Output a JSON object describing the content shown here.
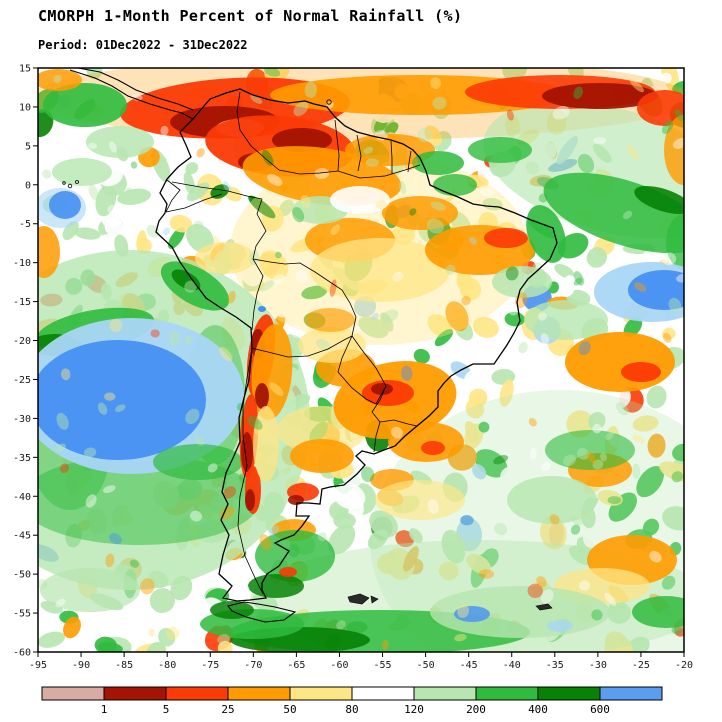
{
  "page": {
    "title": "CMORPH 1-Month Percent of Normal Rainfall (%)",
    "subtitle": "Period: 01Dec2022 - 31Dec2022"
  },
  "chart_data": {
    "type": "heatmap",
    "title": "CMORPH 1-Month Percent of Normal Rainfall (%)",
    "period": "01Dec2022 - 31Dec2022",
    "region_shown": "South America",
    "lon_range": [
      -95,
      -20
    ],
    "lat_range": [
      -60,
      15
    ],
    "lon_ticks": [
      -95,
      -90,
      -85,
      -80,
      -75,
      -70,
      -65,
      -60,
      -55,
      -50,
      -45,
      -40,
      -35,
      -30,
      -25,
      -20
    ],
    "lat_ticks": [
      15,
      10,
      5,
      0,
      -5,
      -10,
      -15,
      -20,
      -25,
      -30,
      -35,
      -40,
      -45,
      -50,
      -55,
      -60
    ],
    "legend": {
      "boundaries": [
        1,
        5,
        25,
        50,
        80,
        120,
        200,
        400,
        600
      ],
      "colors": [
        "#d9aca3",
        "#a31402",
        "#fb3a05",
        "#ff9b00",
        "#ffe685",
        "#ffffff",
        "#b7e6b0",
        "#2fbb3e",
        "#078207",
        "#5b9ef0"
      ]
    },
    "palette": {
      "tan": "#d9aca3",
      "darkred": "#a31402",
      "red": "#fb3a05",
      "orange": "#ff9b00",
      "yellow": "#ffe685",
      "white": "#ffffff",
      "lightgreen": "#b7e6b0",
      "green": "#2fbb3e",
      "darkgreen": "#078207",
      "lightblue": "#a9d6f5",
      "blue": "#4690f2"
    },
    "map_regions_format": "cx,cy,rx,ry,rotation_deg,palette_color,opacity",
    "map_regions": [
      [
        360,
        98,
        330,
        42,
        0,
        "orange",
        0.28
      ],
      [
        610,
        170,
        130,
        62,
        15,
        "lightgreen",
        0.65
      ],
      [
        380,
        250,
        150,
        95,
        0,
        "yellow",
        0.4
      ],
      [
        130,
        420,
        180,
        170,
        0,
        "lightgreen",
        0.8
      ],
      [
        560,
        540,
        190,
        150,
        0,
        "lightgreen",
        0.3
      ],
      [
        480,
        600,
        230,
        60,
        0,
        "lightgreen",
        0.45
      ],
      [
        90,
        590,
        50,
        22,
        0,
        "lightgreen",
        0.7
      ],
      [
        140,
        500,
        120,
        45,
        0,
        "green",
        0.5
      ],
      [
        70,
        450,
        40,
        60,
        0,
        "green",
        0.45
      ],
      [
        215,
        395,
        30,
        70,
        0,
        "green",
        0.45
      ],
      [
        235,
        108,
        115,
        30,
        -3,
        "red",
        0.95
      ],
      [
        225,
        122,
        55,
        16,
        0,
        "darkred",
        0.95
      ],
      [
        240,
        128,
        24,
        9,
        0,
        "tan",
        0.9
      ],
      [
        420,
        95,
        150,
        20,
        0,
        "orange",
        0.9
      ],
      [
        560,
        92,
        95,
        17,
        0,
        "red",
        0.9
      ],
      [
        600,
        96,
        58,
        13,
        0,
        "darkred",
        0.95
      ],
      [
        665,
        108,
        28,
        18,
        0,
        "red",
        0.9
      ],
      [
        684,
        150,
        20,
        35,
        0,
        "orange",
        0.8
      ],
      [
        85,
        105,
        42,
        22,
        0,
        "green",
        0.9
      ],
      [
        120,
        142,
        34,
        16,
        0,
        "lightgreen",
        0.85
      ],
      [
        58,
        80,
        24,
        11,
        0,
        "orange",
        0.85
      ],
      [
        280,
        146,
        75,
        30,
        5,
        "red",
        0.95
      ],
      [
        302,
        140,
        30,
        12,
        0,
        "darkred",
        0.95
      ],
      [
        256,
        162,
        18,
        9,
        0,
        "darkred",
        0.95
      ],
      [
        322,
        176,
        80,
        28,
        8,
        "orange",
        0.9
      ],
      [
        390,
        150,
        45,
        16,
        0,
        "orange",
        0.85
      ],
      [
        438,
        163,
        26,
        12,
        0,
        "green",
        0.85
      ],
      [
        500,
        150,
        32,
        13,
        0,
        "green",
        0.8
      ],
      [
        350,
        240,
        45,
        22,
        0,
        "orange",
        0.85
      ],
      [
        420,
        213,
        38,
        17,
        0,
        "orange",
        0.85
      ],
      [
        380,
        270,
        70,
        32,
        0,
        "yellow",
        0.75
      ],
      [
        320,
        210,
        28,
        14,
        0,
        "lightgreen",
        0.85
      ],
      [
        455,
        185,
        22,
        11,
        0,
        "green",
        0.8
      ],
      [
        360,
        200,
        30,
        14,
        0,
        "white",
        0.9
      ],
      [
        480,
        250,
        55,
        25,
        0,
        "orange",
        0.9
      ],
      [
        506,
        238,
        22,
        10,
        0,
        "red",
        0.9
      ],
      [
        546,
        234,
        18,
        30,
        -20,
        "green",
        0.9
      ],
      [
        522,
        282,
        30,
        16,
        0,
        "lightgreen",
        0.85
      ],
      [
        625,
        213,
        85,
        32,
        18,
        "green",
        0.85
      ],
      [
        663,
        200,
        30,
        11,
        18,
        "darkgreen",
        0.9
      ],
      [
        684,
        242,
        18,
        28,
        0,
        "green",
        0.8
      ],
      [
        652,
        292,
        58,
        30,
        0,
        "lightblue",
        0.95
      ],
      [
        664,
        290,
        36,
        20,
        0,
        "blue",
        0.95
      ],
      [
        620,
        362,
        55,
        30,
        0,
        "orange",
        0.95
      ],
      [
        641,
        372,
        20,
        10,
        0,
        "red",
        0.95
      ],
      [
        566,
        320,
        42,
        20,
        0,
        "lightgreen",
        0.8
      ],
      [
        95,
        330,
        60,
        20,
        -10,
        "green",
        0.9
      ],
      [
        55,
        345,
        26,
        11,
        0,
        "darkgreen",
        0.9
      ],
      [
        132,
        396,
        112,
        78,
        0,
        "lightblue",
        0.95
      ],
      [
        118,
        400,
        88,
        60,
        0,
        "blue",
        0.95
      ],
      [
        198,
        462,
        45,
        18,
        0,
        "green",
        0.7
      ],
      [
        195,
        286,
        38,
        18,
        30,
        "green",
        0.9
      ],
      [
        186,
        280,
        16,
        8,
        30,
        "darkgreen",
        0.9
      ],
      [
        225,
        258,
        30,
        16,
        0,
        "yellow",
        0.75
      ],
      [
        261,
        356,
        13,
        42,
        8,
        "red",
        0.95
      ],
      [
        258,
        344,
        7,
        15,
        0,
        "darkred",
        0.95
      ],
      [
        272,
        372,
        20,
        48,
        5,
        "orange",
        0.9
      ],
      [
        262,
        396,
        7,
        13,
        0,
        "darkred",
        0.95
      ],
      [
        249,
        436,
        9,
        42,
        3,
        "red",
        0.95
      ],
      [
        247,
        452,
        6,
        20,
        0,
        "darkred",
        0.95
      ],
      [
        253,
        490,
        8,
        24,
        0,
        "red",
        0.95
      ],
      [
        250,
        500,
        5,
        11,
        0,
        "darkred",
        0.95
      ],
      [
        266,
        444,
        13,
        38,
        0,
        "yellow",
        0.75
      ],
      [
        322,
        430,
        45,
        24,
        0,
        "yellow",
        0.7
      ],
      [
        322,
        456,
        32,
        17,
        0,
        "orange",
        0.9
      ],
      [
        303,
        492,
        16,
        9,
        0,
        "red",
        0.9
      ],
      [
        296,
        500,
        8,
        5,
        0,
        "darkred",
        0.9
      ],
      [
        294,
        530,
        22,
        11,
        0,
        "orange",
        0.85
      ],
      [
        395,
        400,
        62,
        38,
        -10,
        "orange",
        0.95
      ],
      [
        388,
        393,
        26,
        13,
        0,
        "red",
        0.95
      ],
      [
        382,
        389,
        11,
        6,
        0,
        "darkred",
        0.95
      ],
      [
        426,
        442,
        38,
        20,
        0,
        "orange",
        0.9
      ],
      [
        433,
        448,
        12,
        7,
        0,
        "red",
        0.9
      ],
      [
        346,
        368,
        30,
        19,
        0,
        "orange",
        0.9
      ],
      [
        332,
        345,
        34,
        18,
        0,
        "yellow",
        0.75
      ],
      [
        330,
        320,
        25,
        12,
        0,
        "orange",
        0.65
      ],
      [
        392,
        480,
        22,
        11,
        0,
        "orange",
        0.8
      ],
      [
        420,
        500,
        45,
        20,
        0,
        "yellow",
        0.65
      ],
      [
        600,
        470,
        32,
        17,
        0,
        "orange",
        0.85
      ],
      [
        590,
        450,
        45,
        20,
        0,
        "green",
        0.6
      ],
      [
        552,
        500,
        45,
        24,
        0,
        "lightgreen",
        0.8
      ],
      [
        632,
        560,
        45,
        25,
        0,
        "orange",
        0.9
      ],
      [
        602,
        586,
        48,
        18,
        0,
        "yellow",
        0.75
      ],
      [
        666,
        612,
        34,
        16,
        0,
        "green",
        0.85
      ],
      [
        380,
        632,
        150,
        22,
        0,
        "green",
        0.85
      ],
      [
        300,
        640,
        70,
        13,
        0,
        "darkgreen",
        0.9
      ],
      [
        520,
        612,
        90,
        26,
        0,
        "lightgreen",
        0.8
      ],
      [
        472,
        614,
        18,
        8,
        0,
        "blue",
        0.8
      ],
      [
        560,
        626,
        13,
        6,
        0,
        "lightblue",
        0.8
      ],
      [
        295,
        556,
        40,
        26,
        0,
        "green",
        0.8
      ],
      [
        276,
        586,
        28,
        12,
        0,
        "darkgreen",
        0.85
      ],
      [
        288,
        572,
        9,
        5,
        0,
        "red",
        0.9
      ],
      [
        252,
        624,
        52,
        15,
        0,
        "green",
        0.85
      ],
      [
        232,
        610,
        22,
        9,
        0,
        "darkgreen",
        0.85
      ],
      [
        60,
        208,
        26,
        20,
        0,
        "lightblue",
        0.6
      ],
      [
        65,
        205,
        16,
        14,
        0,
        "blue",
        0.9
      ],
      [
        44,
        252,
        16,
        26,
        0,
        "orange",
        0.85
      ],
      [
        82,
        172,
        30,
        14,
        0,
        "lightgreen",
        0.8
      ]
    ]
  }
}
